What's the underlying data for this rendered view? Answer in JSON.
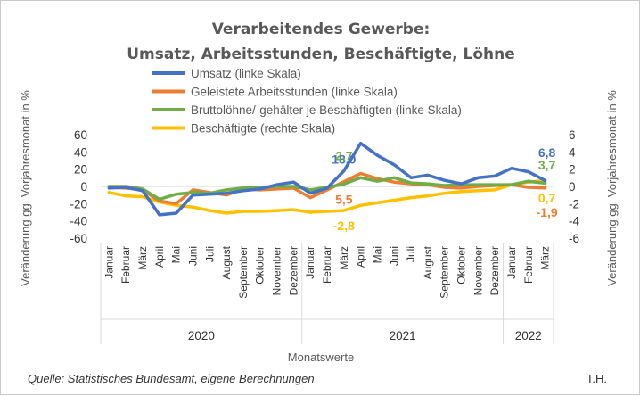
{
  "chart_data": {
    "type": "line",
    "title": "Verarbeitendes Gewerbe:",
    "subtitle": "Umsatz, Arbeitsstunden, Beschäftigte, Löhne",
    "xlabel": "Monatswerte",
    "ylabel_left": "Veränderung gg. Vorjahresmonat in %",
    "ylabel_right": "Veränderung gg. Vorjahresmonat in %",
    "categories": [
      "Januar",
      "Februar",
      "März",
      "April",
      "Mai",
      "Juni",
      "Juli",
      "August",
      "September",
      "Oktober",
      "November",
      "Dezember",
      "Januar",
      "Februar",
      "März",
      "April",
      "Mai",
      "Juni",
      "Juli",
      "August",
      "September",
      "Oktober",
      "November",
      "Dezember",
      "Januar",
      "Februar",
      "März"
    ],
    "years": [
      {
        "label": "2020",
        "start": 0,
        "end": 11
      },
      {
        "label": "2021",
        "start": 12,
        "end": 23
      },
      {
        "label": "2022",
        "start": 24,
        "end": 26
      }
    ],
    "ylim_left": [
      -60,
      60
    ],
    "yticks_left": [
      "60",
      "40",
      "20",
      "0",
      "-20",
      "-40",
      "-60"
    ],
    "ylim_right": [
      -6,
      6
    ],
    "yticks_right": [
      "6",
      "4",
      "2",
      "0",
      "-2",
      "-4",
      "-6"
    ],
    "series": [
      {
        "name": "Umsatz (linke Skala)",
        "axis": "left",
        "color": "#4472c4",
        "values": [
          -2,
          -1,
          -5,
          -33,
          -31,
          -10,
          -9,
          -8,
          -5,
          -3,
          2,
          5,
          -8,
          -2,
          18,
          50,
          36,
          25,
          10,
          13,
          7,
          3,
          10,
          12,
          21,
          17,
          6.8
        ]
      },
      {
        "name": "Geleistete Arbeitsstunden (linke Skala)",
        "axis": "left",
        "color": "#ed7d31",
        "values": [
          -1,
          -2,
          -4,
          -17,
          -20,
          -4,
          -7,
          -10,
          -3,
          -4,
          -3,
          -2,
          -13,
          -4,
          5.5,
          15,
          9,
          5,
          3,
          2,
          -1,
          -2,
          0,
          1,
          2,
          -1,
          -1.9
        ]
      },
      {
        "name": "Bruttolöhne/-gehälter je Beschäftigten (linke Skala)",
        "axis": "left",
        "color": "#70ad47",
        "values": [
          0,
          0,
          -3,
          -15,
          -9,
          -7,
          -8,
          -4,
          -2,
          -1,
          0,
          0,
          -4,
          -1,
          2.7,
          10,
          6,
          10,
          4,
          3,
          1,
          2,
          2,
          2,
          2,
          6,
          3.7
        ]
      },
      {
        "name": "Beschäftigte (rechte Skala)",
        "axis": "right",
        "color": "#ffc000",
        "values": [
          -0.7,
          -1.1,
          -1.2,
          -1.8,
          -2.2,
          -2.4,
          -2.8,
          -3.1,
          -2.9,
          -2.9,
          -2.8,
          -2.7,
          -3.0,
          -2.9,
          -2.8,
          -2.2,
          -1.9,
          -1.6,
          -1.3,
          -1.1,
          -0.8,
          -0.6,
          -0.5,
          -0.4,
          0.2,
          0.5,
          0.7
        ]
      }
    ],
    "annotations": [
      {
        "text": "18,0",
        "series": 0,
        "index": 14,
        "color": "#4472c4",
        "pos": "above"
      },
      {
        "text": "2,7",
        "series": 2,
        "index": 14,
        "color": "#70ad47",
        "pos": "above"
      },
      {
        "text": "5,5",
        "series": 1,
        "index": 14,
        "color": "#ed7d31",
        "pos": "below"
      },
      {
        "text": "-2,8",
        "series": 3,
        "index": 14,
        "color": "#ffc000",
        "pos": "below"
      },
      {
        "text": "6,8",
        "series": 0,
        "index": 26,
        "color": "#4472c4",
        "pos": "above-end"
      },
      {
        "text": "3,7",
        "series": 2,
        "index": 26,
        "color": "#70ad47",
        "pos": "above-end"
      },
      {
        "text": "0,7",
        "series": 3,
        "index": 26,
        "color": "#ffc000",
        "pos": "below-end"
      },
      {
        "text": "-1,9",
        "series": 1,
        "index": 26,
        "color": "#ed7d31",
        "pos": "below-end2"
      }
    ],
    "grid": false,
    "legend_position": "top-center"
  },
  "footer": {
    "source": "Quelle: Statistisches Bundesamt, eigene Berechnungen",
    "author": "T.H."
  }
}
